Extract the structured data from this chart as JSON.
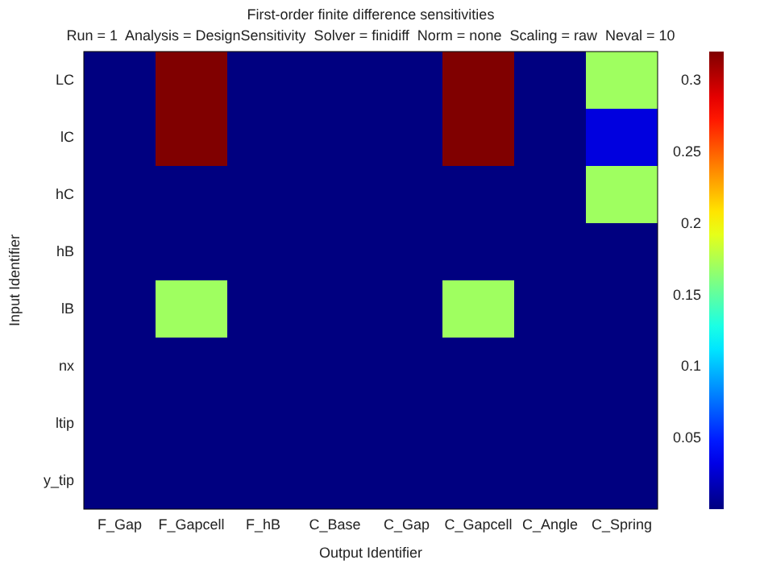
{
  "chart_data": {
    "type": "heatmap",
    "title": "First-order finite difference sensitivities",
    "subtitle": "Run = 1  Analysis = DesignSensitivity  Solver = finidiff  Norm = none  Scaling = raw  Neval = 10",
    "xlabel": "Output Identifier",
    "ylabel": "Input Identifier",
    "categories": [
      "F_Gap",
      "F_Gapcell",
      "F_hB",
      "C_Base",
      "C_Gap",
      "C_Gapcell",
      "C_Angle",
      "C_Spring"
    ],
    "y_categories": [
      "LC",
      "lC",
      "hC",
      "hB",
      "lB",
      "nx",
      "ltip",
      "y_tip"
    ],
    "cells": [
      [
        0,
        0.32,
        0,
        0,
        0,
        0.32,
        0,
        0.17
      ],
      [
        0,
        0.32,
        0,
        0,
        0,
        0.32,
        0,
        0.03
      ],
      [
        0,
        0,
        0,
        0,
        0,
        0,
        0,
        0.17
      ],
      [
        0,
        0,
        0,
        0,
        0,
        0,
        0,
        0
      ],
      [
        0,
        0.17,
        0,
        0,
        0,
        0.17,
        0,
        0
      ],
      [
        0,
        0,
        0,
        0,
        0,
        0,
        0,
        0
      ],
      [
        0,
        0,
        0,
        0,
        0,
        0,
        0,
        0
      ],
      [
        0,
        0,
        0,
        0,
        0,
        0,
        0,
        0
      ]
    ],
    "clim": [
      0,
      0.32
    ],
    "cticks": [
      0.05,
      0.1,
      0.15,
      0.2,
      0.25,
      0.3
    ]
  }
}
